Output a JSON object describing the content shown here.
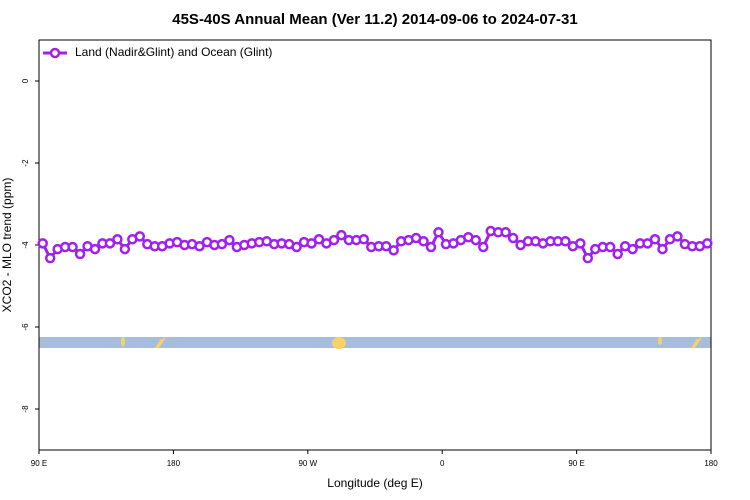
{
  "chart_data": {
    "type": "line",
    "title": "45S-40S Annual Mean (Ver 11.2)   2014-09-06 to 2024-07-31",
    "x_label": "Longitude (deg E)",
    "y_label": "XCO2 - MLO trend (ppm)",
    "legend": "top-left",
    "xlim": [
      90,
      540
    ],
    "xticks": [
      {
        "value": 90,
        "label": "90 E"
      },
      {
        "value": 180,
        "label": "180"
      },
      {
        "value": 270,
        "label": "90 W"
      },
      {
        "value": 360,
        "label": "0"
      },
      {
        "value": 450,
        "label": "90 E"
      },
      {
        "value": 540,
        "label": "180"
      }
    ],
    "ylim": [
      -9,
      1
    ],
    "yticks": [
      0,
      -2,
      -4,
      -6,
      -8
    ],
    "x": [
      92.5,
      97.5,
      102.5,
      107.5,
      112.5,
      117.5,
      122.5,
      127.5,
      132.5,
      137.5,
      142.5,
      147.5,
      152.5,
      157.5,
      162.5,
      167.5,
      172.5,
      177.5,
      182.5,
      187.5,
      192.5,
      197.5,
      202.5,
      207.5,
      212.5,
      217.5,
      222.5,
      227.5,
      232.5,
      237.5,
      242.5,
      247.5,
      252.5,
      257.5,
      262.5,
      267.5,
      272.5,
      277.5,
      282.5,
      287.5,
      292.5,
      297.5,
      302.5,
      307.5,
      312.5,
      317.5,
      322.5,
      327.5,
      332.5,
      337.5,
      342.5,
      347.5,
      352.5,
      357.5,
      362.5,
      367.5,
      372.5,
      377.5,
      382.5,
      387.5,
      392.5,
      397.5,
      402.5,
      407.5,
      412.5,
      417.5,
      422.5,
      427.5,
      432.5,
      437.5,
      442.5,
      447.5,
      452.5,
      457.5,
      462.5,
      467.5,
      472.5,
      477.5,
      482.5,
      487.5,
      492.5,
      497.5,
      502.5,
      507.5,
      512.5,
      517.5,
      522.5,
      527.5,
      532.5,
      537.5
    ],
    "series": [
      {
        "name": "Land (Nadir&Glint) and Ocean (Glint)",
        "color": "#a020f0",
        "values": [
          -3.96,
          -4.32,
          -4.1,
          -4.05,
          -4.05,
          -4.22,
          -4.03,
          -4.1,
          -3.96,
          -3.96,
          -3.86,
          -4.1,
          -3.86,
          -3.79,
          -3.98,
          -4.03,
          -4.03,
          -3.96,
          -3.93,
          -4.0,
          -3.98,
          -4.03,
          -3.93,
          -4.0,
          -3.98,
          -3.88,
          -4.05,
          -4.0,
          -3.96,
          -3.93,
          -3.91,
          -3.98,
          -3.96,
          -3.98,
          -4.05,
          -3.93,
          -3.96,
          -3.86,
          -3.96,
          -3.88,
          -3.76,
          -3.88,
          -3.88,
          -3.86,
          -4.05,
          -4.03,
          -4.03,
          -4.13,
          -3.91,
          -3.88,
          -3.83,
          -3.91,
          -4.05,
          -3.69,
          -3.98,
          -3.96,
          -3.88,
          -3.81,
          -3.88,
          -4.05,
          -3.66,
          -3.69,
          -3.69,
          -3.83,
          -4.0,
          -3.91,
          -3.91,
          -3.96,
          -3.91,
          -3.91,
          -3.91,
          -4.03,
          -3.96,
          -4.32,
          -4.1,
          -4.05,
          -4.05,
          -4.22,
          -4.03,
          -4.1,
          -3.96,
          -3.96,
          -3.86,
          -4.1,
          -3.86,
          -3.79,
          -3.98,
          -4.03,
          -4.03,
          -3.96
        ]
      }
    ]
  }
}
